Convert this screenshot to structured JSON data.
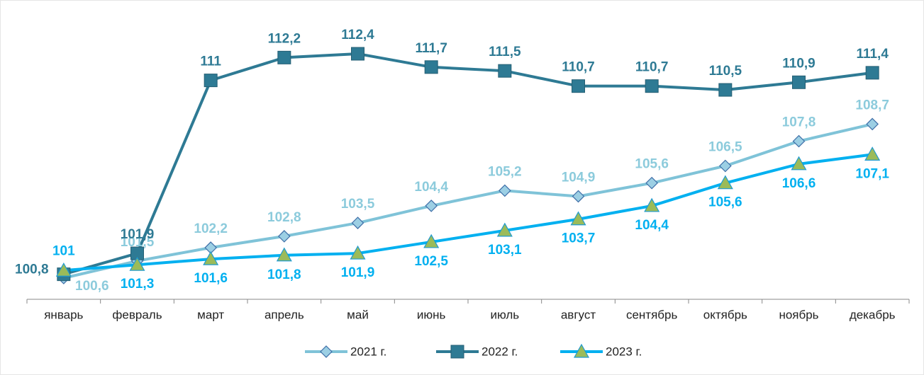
{
  "chart_data": {
    "type": "line",
    "categories": [
      "январь",
      "февраль",
      "март",
      "апрель",
      "май",
      "июнь",
      "июль",
      "август",
      "сентябрь",
      "октябрь",
      "ноябрь",
      "декабрь"
    ],
    "series": [
      {
        "name": "2021 г.",
        "color": "#7fc3d8",
        "marker": "diamond",
        "values": [
          100.6,
          101.5,
          102.2,
          102.8,
          103.5,
          104.4,
          105.2,
          104.9,
          105.6,
          106.5,
          107.8,
          108.7
        ],
        "value_labels": [
          "100,6",
          "101,5",
          "102,2",
          "102,8",
          "103,5",
          "104,4",
          "105,2",
          "104,9",
          "105,6",
          "106,5",
          "107,8",
          "108,7"
        ]
      },
      {
        "name": "2022 г.",
        "color": "#2e7a94",
        "marker": "square",
        "values": [
          100.8,
          101.9,
          111,
          112.2,
          112.4,
          111.7,
          111.5,
          110.7,
          110.7,
          110.5,
          110.9,
          111.4
        ],
        "value_labels": [
          "100,8",
          "101,9",
          "111",
          "112,2",
          "112,4",
          "111,7",
          "111,5",
          "110,7",
          "110,7",
          "110,5",
          "110,9",
          "111,4"
        ]
      },
      {
        "name": "2023 г.",
        "color": "#00b0f0",
        "marker": "triangle",
        "values": [
          101,
          101.3,
          101.6,
          101.8,
          101.9,
          102.5,
          103.1,
          103.7,
          104.4,
          105.6,
          106.6,
          107.1
        ],
        "value_labels": [
          "101",
          "101,3",
          "101,6",
          "101,8",
          "101,9",
          "102,5",
          "103,1",
          "103,7",
          "104,4",
          "105,6",
          "106,6",
          "107,1"
        ]
      }
    ],
    "legend": "bottom"
  }
}
